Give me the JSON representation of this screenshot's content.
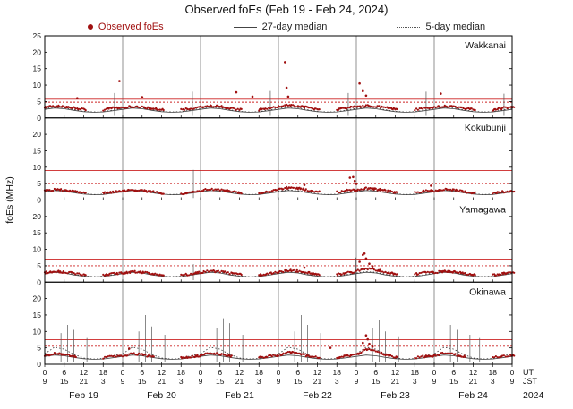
{
  "chart_data": {
    "type": "scatter",
    "title": "Observed foEs (Feb 19 - Feb 24, 2024)",
    "ylabel": "foEs (MHz)",
    "ylim": [
      0,
      25
    ],
    "yticks": [
      0,
      5,
      10,
      15,
      20,
      25
    ],
    "x_span_hours": 144,
    "xtick_step_hours": 6,
    "xticks_ut": [
      "0",
      "6",
      "12",
      "18",
      "0",
      "6",
      "12",
      "18",
      "0",
      "6",
      "12",
      "18",
      "0",
      "6",
      "12",
      "18",
      "0",
      "6",
      "12",
      "18",
      "0",
      "6",
      "12",
      "18",
      "0"
    ],
    "xticks_jst": [
      "9",
      "15",
      "21",
      "3",
      "9",
      "15",
      "21",
      "3",
      "9",
      "15",
      "21",
      "3",
      "9",
      "15",
      "21",
      "3",
      "9",
      "15",
      "21",
      "3",
      "9",
      "15",
      "21",
      "3",
      "9"
    ],
    "dates": [
      "Feb 19",
      "Feb 20",
      "Feb 21",
      "Feb 22",
      "Feb 23",
      "Feb 24"
    ],
    "year": "2024",
    "ut_label": "UT",
    "jst_label": "JST",
    "legend": [
      {
        "label": "Observed foEs",
        "style": "dot",
        "color": "#a01010"
      },
      {
        "label": "27-day median",
        "style": "solid",
        "color": "#444444"
      },
      {
        "label": "5-day median",
        "style": "dotted",
        "color": "#555555"
      }
    ],
    "colors": {
      "observed": "#a01010",
      "red_line": "#cc2222",
      "median27": "#444444",
      "median5": "#333333",
      "grid": "#777777",
      "spike": "#555555"
    },
    "stations": [
      {
        "name": "Wakkanai",
        "red_solid": 5.7,
        "red_dotted": 4.8,
        "observed": [
          3.3,
          3.6,
          3.4,
          3.0,
          2.6,
          null,
          2.5,
          3.0,
          3.2,
          3.5,
          3.3,
          2.9,
          2.5,
          null,
          2.4,
          2.9,
          3.4,
          3.7,
          3.5,
          3.0,
          2.6,
          null,
          2.5,
          3.0,
          3.5,
          3.8,
          3.6,
          3.2,
          2.7,
          null,
          2.6,
          3.1,
          3.4,
          3.7,
          3.5,
          3.1,
          2.6,
          null,
          2.5,
          3.0,
          3.3,
          3.6,
          3.4,
          3.0,
          2.6,
          null,
          2.5,
          3.0,
          3.3
        ],
        "median27": [
          2.6,
          3.0,
          2.8,
          2.3,
          1.9,
          1.7,
          1.8,
          2.2,
          2.6,
          3.0,
          2.8,
          2.3,
          1.9,
          1.7,
          1.8,
          2.2,
          2.6,
          3.0,
          2.8,
          2.3,
          1.9,
          1.7,
          1.8,
          2.2,
          2.6,
          3.0,
          2.8,
          2.3,
          1.9,
          1.7,
          1.8,
          2.2,
          2.6,
          3.0,
          2.8,
          2.3,
          1.9,
          1.7,
          1.8,
          2.2,
          2.6,
          3.0,
          2.8,
          2.3,
          1.9,
          1.7,
          1.8,
          2.2,
          2.6
        ],
        "median5": [
          2.9,
          3.3,
          3.1,
          2.5,
          2.0,
          1.8,
          1.9,
          2.4,
          2.9,
          3.3,
          3.1,
          2.5,
          2.0,
          1.8,
          1.9,
          2.4,
          2.9,
          3.3,
          3.1,
          2.5,
          2.0,
          1.8,
          1.9,
          2.4,
          2.9,
          3.3,
          3.1,
          2.5,
          2.0,
          1.8,
          1.9,
          2.4,
          2.9,
          3.3,
          3.1,
          2.5,
          2.0,
          1.8,
          1.9,
          2.4,
          2.9,
          3.3,
          3.1,
          2.5,
          2.0,
          1.8,
          1.9,
          2.4,
          2.9
        ],
        "outliers": [
          [
            10,
            6.0
          ],
          [
            23,
            11.2
          ],
          [
            30,
            6.3
          ],
          [
            59,
            7.8
          ],
          [
            64,
            6.5
          ],
          [
            74,
            17.0
          ],
          [
            74.5,
            9.2
          ],
          [
            75,
            6.5
          ],
          [
            97,
            10.5
          ],
          [
            98,
            8.2
          ],
          [
            99,
            6.8
          ],
          [
            122,
            7.4
          ]
        ],
        "spikes": [
          [
            21.5,
            7.6
          ],
          [
            45.5,
            8.0
          ],
          [
            69.5,
            8.2
          ],
          [
            93.5,
            7.6
          ],
          [
            117.5,
            8.0
          ],
          [
            141.5,
            7.4
          ]
        ]
      },
      {
        "name": "Kokubunji",
        "red_solid": 9.0,
        "red_dotted": 5.0,
        "observed": [
          2.8,
          3.2,
          3.0,
          2.6,
          2.2,
          null,
          2.1,
          2.5,
          2.7,
          3.1,
          2.9,
          2.5,
          2.1,
          null,
          2.0,
          2.4,
          2.9,
          3.3,
          3.1,
          2.7,
          2.2,
          null,
          2.1,
          2.5,
          3.2,
          3.8,
          3.6,
          3.0,
          2.5,
          null,
          2.4,
          2.9,
          3.0,
          3.6,
          3.4,
          2.8,
          2.4,
          null,
          2.3,
          2.7,
          2.8,
          3.2,
          3.0,
          2.6,
          2.2,
          null,
          2.1,
          2.5,
          2.8
        ],
        "median27": [
          2.5,
          2.9,
          2.7,
          2.2,
          1.8,
          1.6,
          1.7,
          2.1,
          2.5,
          2.9,
          2.7,
          2.2,
          1.8,
          1.6,
          1.7,
          2.1,
          2.5,
          2.9,
          2.7,
          2.2,
          1.8,
          1.6,
          1.7,
          2.1,
          2.5,
          2.9,
          2.7,
          2.2,
          1.8,
          1.6,
          1.7,
          2.1,
          2.5,
          2.9,
          2.7,
          2.2,
          1.8,
          1.6,
          1.7,
          2.1,
          2.5,
          2.9,
          2.7,
          2.2,
          1.8,
          1.6,
          1.7,
          2.1,
          2.5
        ],
        "median5": [
          2.7,
          3.1,
          2.9,
          2.4,
          1.9,
          1.7,
          1.8,
          2.3,
          2.7,
          3.1,
          2.9,
          2.4,
          1.9,
          1.7,
          1.8,
          2.3,
          2.7,
          3.1,
          2.9,
          2.4,
          1.9,
          1.7,
          1.8,
          2.3,
          2.7,
          3.1,
          2.9,
          2.4,
          1.9,
          1.7,
          1.8,
          2.3,
          2.7,
          3.1,
          2.9,
          2.4,
          1.9,
          1.7,
          1.8,
          2.3,
          2.7,
          3.1,
          2.9,
          2.4,
          1.9,
          1.7,
          1.8,
          2.3,
          2.7
        ],
        "outliers": [
          [
            80,
            4.6
          ],
          [
            93,
            5.2
          ],
          [
            94,
            6.8
          ],
          [
            95,
            7.0
          ],
          [
            95.5,
            5.8
          ],
          [
            96,
            4.9
          ],
          [
            119,
            4.4
          ]
        ],
        "spikes": [
          [
            45.8,
            9.2
          ],
          [
            71.8,
            8.6
          ]
        ]
      },
      {
        "name": "Yamagawa",
        "red_solid": 7.0,
        "red_dotted": 5.0,
        "observed": [
          2.9,
          3.3,
          3.1,
          2.7,
          2.2,
          null,
          2.1,
          2.6,
          2.8,
          3.2,
          3.0,
          2.6,
          2.1,
          null,
          2.0,
          2.5,
          3.0,
          3.4,
          3.2,
          2.8,
          2.3,
          null,
          2.2,
          2.6,
          3.1,
          3.6,
          3.4,
          2.9,
          2.4,
          null,
          2.3,
          2.8,
          3.3,
          4.2,
          3.8,
          3.0,
          2.5,
          null,
          2.4,
          2.9,
          2.9,
          3.3,
          3.1,
          2.7,
          2.2,
          null,
          2.1,
          2.6,
          2.9
        ],
        "median27": [
          2.6,
          3.0,
          2.8,
          2.2,
          1.8,
          1.6,
          1.7,
          2.1,
          2.6,
          3.0,
          2.8,
          2.2,
          1.8,
          1.6,
          1.7,
          2.1,
          2.6,
          3.0,
          2.8,
          2.2,
          1.8,
          1.6,
          1.7,
          2.1,
          2.6,
          3.0,
          2.8,
          2.2,
          1.8,
          1.6,
          1.7,
          2.1,
          2.6,
          3.0,
          2.8,
          2.2,
          1.8,
          1.6,
          1.7,
          2.1,
          2.6,
          3.0,
          2.8,
          2.2,
          1.8,
          1.6,
          1.7,
          2.1,
          2.6
        ],
        "median5": [
          2.8,
          3.2,
          3.0,
          2.4,
          1.9,
          1.7,
          1.8,
          2.3,
          2.8,
          3.2,
          3.0,
          2.4,
          1.9,
          1.7,
          1.8,
          2.3,
          2.8,
          3.2,
          3.0,
          2.4,
          1.9,
          1.7,
          1.8,
          2.3,
          2.8,
          3.2,
          3.0,
          2.4,
          1.9,
          1.7,
          1.8,
          2.3,
          2.8,
          3.2,
          3.0,
          2.4,
          1.9,
          1.7,
          1.8,
          2.3,
          2.8,
          3.2,
          3.0,
          2.4,
          1.9,
          1.7,
          1.8,
          2.3,
          2.8
        ],
        "outliers": [
          [
            80,
            4.4
          ],
          [
            97,
            6.2
          ],
          [
            98,
            8.3
          ],
          [
            98.5,
            8.7
          ],
          [
            99,
            7.2
          ],
          [
            100,
            5.6
          ],
          [
            101,
            4.8
          ]
        ],
        "spikes": [
          [
            45.8,
            5.5
          ],
          [
            95.8,
            7.5
          ]
        ]
      },
      {
        "name": "Okinawa",
        "red_solid": 7.5,
        "red_dotted": 5.5,
        "observed": [
          2.6,
          3.4,
          3.0,
          2.4,
          null,
          null,
          2.0,
          2.4,
          2.5,
          3.3,
          2.9,
          2.3,
          null,
          null,
          1.9,
          2.3,
          2.7,
          3.5,
          3.1,
          2.5,
          null,
          null,
          2.0,
          2.4,
          2.8,
          3.7,
          3.3,
          2.6,
          2.1,
          null,
          2.1,
          2.5,
          3.0,
          4.5,
          4.0,
          2.8,
          2.2,
          null,
          2.0,
          2.4,
          2.6,
          3.4,
          3.0,
          2.4,
          null,
          null,
          2.0,
          2.4,
          2.6
        ],
        "median27": [
          2.4,
          2.8,
          2.6,
          2.1,
          1.7,
          1.5,
          1.6,
          2.0,
          2.4,
          2.8,
          2.6,
          2.1,
          1.7,
          1.5,
          1.6,
          2.0,
          2.4,
          2.8,
          2.6,
          2.1,
          1.7,
          1.5,
          1.6,
          2.0,
          2.4,
          2.8,
          2.6,
          2.1,
          1.7,
          1.5,
          1.6,
          2.0,
          2.4,
          2.8,
          2.6,
          2.1,
          1.7,
          1.5,
          1.6,
          2.0,
          2.4,
          2.8,
          2.6,
          2.1,
          1.7,
          1.5,
          1.6,
          2.0,
          2.4
        ],
        "median5": [
          3.2,
          5.2,
          4.6,
          3.0,
          1.9,
          1.6,
          1.8,
          2.6,
          3.2,
          5.2,
          4.6,
          3.0,
          1.9,
          1.6,
          1.8,
          2.6,
          3.2,
          5.2,
          4.6,
          3.0,
          1.9,
          1.6,
          1.8,
          2.6,
          3.2,
          5.2,
          4.6,
          3.0,
          1.9,
          1.6,
          1.8,
          2.6,
          3.2,
          5.2,
          4.6,
          3.0,
          1.9,
          1.6,
          1.8,
          2.6,
          3.2,
          5.2,
          4.6,
          3.0,
          1.9,
          1.6,
          1.8,
          2.6,
          3.2
        ],
        "outliers": [
          [
            26,
            4.8
          ],
          [
            88,
            5.0
          ],
          [
            98,
            6.5
          ],
          [
            99,
            8.8
          ],
          [
            99.5,
            7.6
          ],
          [
            100,
            6.2
          ],
          [
            101,
            5.4
          ]
        ],
        "spikes": [
          [
            5,
            9.5
          ],
          [
            7,
            12
          ],
          [
            9,
            10.5
          ],
          [
            13,
            8
          ],
          [
            29,
            10
          ],
          [
            31,
            15
          ],
          [
            33,
            11.5
          ],
          [
            37,
            9
          ],
          [
            53,
            11
          ],
          [
            55,
            14
          ],
          [
            57,
            12.5
          ],
          [
            61,
            9
          ],
          [
            77,
            10
          ],
          [
            79,
            15
          ],
          [
            81,
            12
          ],
          [
            85,
            9.5
          ],
          [
            101,
            11
          ],
          [
            103,
            13.5
          ],
          [
            105,
            10
          ],
          [
            109,
            8.5
          ],
          [
            125,
            12
          ],
          [
            127,
            10.5
          ],
          [
            131,
            9
          ],
          [
            134,
            8
          ]
        ]
      }
    ]
  }
}
